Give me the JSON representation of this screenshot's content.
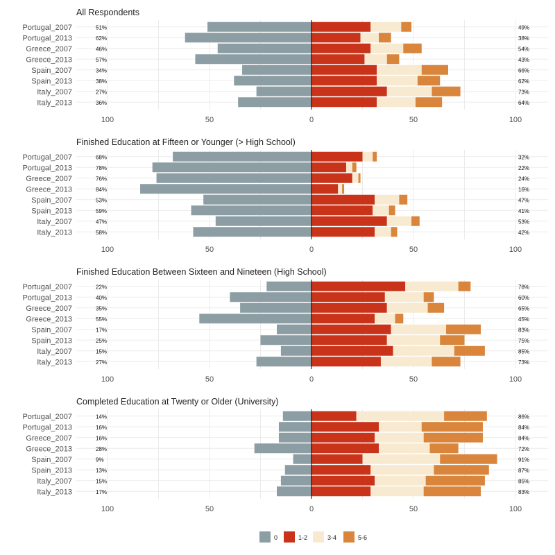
{
  "chart_data": {
    "type": "bar",
    "orientation": "horizontal",
    "stacking": "diverging",
    "xlim": [
      -100,
      100
    ],
    "xticks": [
      -100,
      -50,
      0,
      50,
      100
    ],
    "xtick_labels": [
      "100",
      "50",
      "0",
      "50",
      "100"
    ],
    "grid": true,
    "legend_position": "bottom",
    "legend": [
      {
        "label": "0",
        "color": "#8c9ea3"
      },
      {
        "label": "1-2",
        "color": "#c9331a"
      },
      {
        "label": "3-4",
        "color": "#f7ead0"
      },
      {
        "label": "5-6",
        "color": "#d9853b"
      }
    ],
    "panels": [
      {
        "title": "All Respondents",
        "categories": [
          "Portugal_2007",
          "Portugal_2013",
          "Greece_2007",
          "Greece_2013",
          "Spain_2007",
          "Spain_2013",
          "Italy_2007",
          "Italy_2013"
        ],
        "left_labels": [
          "51%",
          "62%",
          "46%",
          "57%",
          "34%",
          "38%",
          "27%",
          "36%"
        ],
        "right_labels": [
          "49%",
          "38%",
          "54%",
          "43%",
          "66%",
          "62%",
          "73%",
          "64%"
        ],
        "series": [
          {
            "name": "0",
            "values": [
              51,
              62,
              46,
              57,
              34,
              38,
              27,
              36
            ]
          },
          {
            "name": "1-2",
            "values": [
              29,
              24,
              29,
              26,
              32,
              32,
              37,
              32
            ]
          },
          {
            "name": "3-4",
            "values": [
              15,
              9,
              16,
              11,
              22,
              20,
              22,
              19
            ]
          },
          {
            "name": "5-6",
            "values": [
              5,
              6,
              9,
              6,
              13,
              11,
              14,
              13
            ]
          }
        ]
      },
      {
        "title": "Finished Education at Fifteen or Younger (> High School)",
        "categories": [
          "Portugal_2007",
          "Portugal_2013",
          "Greece_2007",
          "Greece_2013",
          "Spain_2007",
          "Spain_2013",
          "Italy_2007",
          "Italy_2013"
        ],
        "left_labels": [
          "68%",
          "78%",
          "76%",
          "84%",
          "53%",
          "59%",
          "47%",
          "58%"
        ],
        "right_labels": [
          "32%",
          "22%",
          "24%",
          "16%",
          "47%",
          "41%",
          "53%",
          "42%"
        ],
        "series": [
          {
            "name": "0",
            "values": [
              68,
              78,
              76,
              84,
              53,
              59,
              47,
              58
            ]
          },
          {
            "name": "1-2",
            "values": [
              25,
              17,
              20,
              13,
              31,
              30,
              37,
              31
            ]
          },
          {
            "name": "3-4",
            "values": [
              5,
              3,
              3,
              2,
              12,
              8,
              12,
              8
            ]
          },
          {
            "name": "5-6",
            "values": [
              2,
              2,
              1,
              1,
              4,
              3,
              4,
              3
            ]
          }
        ]
      },
      {
        "title": "Finished Education Between Sixteen and Nineteen (High School)",
        "categories": [
          "Portugal_2007",
          "Portugal_2013",
          "Greece_2007",
          "Greece_2013",
          "Spain_2007",
          "Spain_2013",
          "Italy_2007",
          "Italy_2013"
        ],
        "left_labels": [
          "22%",
          "40%",
          "35%",
          "55%",
          "17%",
          "25%",
          "15%",
          "27%"
        ],
        "right_labels": [
          "78%",
          "60%",
          "65%",
          "45%",
          "83%",
          "75%",
          "85%",
          "73%"
        ],
        "series": [
          {
            "name": "0",
            "values": [
              22,
              40,
              35,
              55,
              17,
              25,
              15,
              27
            ]
          },
          {
            "name": "1-2",
            "values": [
              46,
              36,
              37,
              31,
              39,
              37,
              40,
              34
            ]
          },
          {
            "name": "3-4",
            "values": [
              26,
              19,
              20,
              10,
              27,
              26,
              30,
              25
            ]
          },
          {
            "name": "5-6",
            "values": [
              6,
              5,
              8,
              4,
              17,
              12,
              15,
              14
            ]
          }
        ]
      },
      {
        "title": "Completed Education at Twenty or Older (University)",
        "categories": [
          "Portugal_2007",
          "Portugal_2013",
          "Greece_2007",
          "Greece_2013",
          "Spain_2007",
          "Spain_2013",
          "Italy_2007",
          "Italy_2013"
        ],
        "left_labels": [
          "14%",
          "16%",
          "16%",
          "28%",
          "9%",
          "13%",
          "15%",
          "17%"
        ],
        "right_labels": [
          "86%",
          "84%",
          "84%",
          "72%",
          "91%",
          "87%",
          "85%",
          "83%"
        ],
        "series": [
          {
            "name": "0",
            "values": [
              14,
              16,
              16,
              28,
              9,
              13,
              15,
              17
            ]
          },
          {
            "name": "1-2",
            "values": [
              22,
              33,
              31,
              33,
              25,
              29,
              31,
              29
            ]
          },
          {
            "name": "3-4",
            "values": [
              43,
              21,
              24,
              25,
              38,
              31,
              25,
              26
            ]
          },
          {
            "name": "5-6",
            "values": [
              21,
              30,
              29,
              14,
              28,
              27,
              29,
              28
            ]
          }
        ]
      }
    ]
  }
}
